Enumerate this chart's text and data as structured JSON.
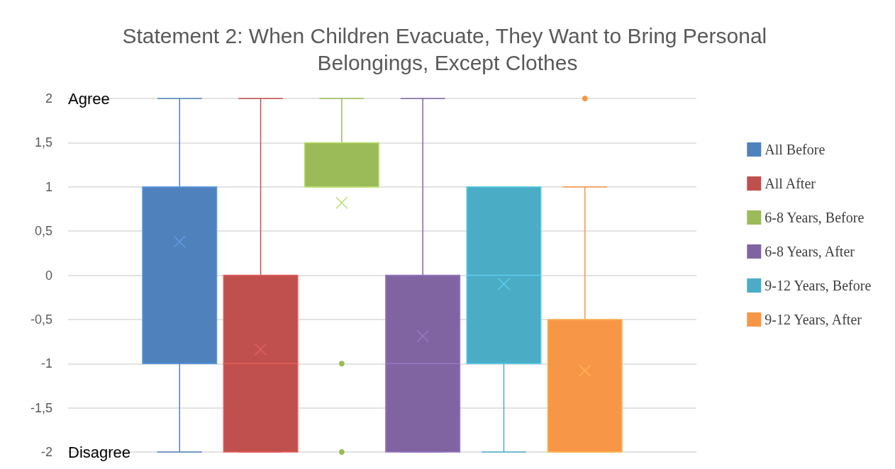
{
  "chart_data": {
    "type": "box",
    "title": "Statement 2: When Children Evacuate, They Want to Bring Personal Belongings, Except Clothes",
    "categories": [
      null
    ],
    "series": [
      {
        "name": "All Before",
        "color": "#4f81bd",
        "boxes": [
          {
            "low": -2,
            "q1": -1,
            "median": 1,
            "q3": 1,
            "high": 2,
            "mean": 0.38
          }
        ]
      },
      {
        "name": "All After",
        "color": "#c0504d",
        "boxes": [
          {
            "low": -2,
            "q1": -2,
            "median": -1,
            "q3": 0,
            "high": 2,
            "mean": -0.84
          }
        ]
      },
      {
        "name": "6-8 Years, Before",
        "color": "#9bbb59",
        "boxes": [
          {
            "low": 1,
            "q1": 1,
            "median": 1,
            "q3": 1.5,
            "high": 2,
            "mean": 0.82,
            "outliers": [
              -1,
              -2
            ]
          }
        ]
      },
      {
        "name": "6-8 Years, After",
        "color": "#8064a2",
        "boxes": [
          {
            "low": -2,
            "q1": -2,
            "median": -1,
            "q3": 0,
            "high": 2,
            "mean": -0.69
          }
        ]
      },
      {
        "name": "9-12 Years, Before",
        "color": "#4bacc6",
        "boxes": [
          {
            "low": -2,
            "q1": -1,
            "median": 0,
            "q3": 1,
            "high": 1,
            "mean": -0.1
          }
        ]
      },
      {
        "name": "9-12 Years, After",
        "color": "#f79646",
        "boxes": [
          {
            "low": -2,
            "q1": -2,
            "median": -2,
            "q3": -0.5,
            "high": 1,
            "mean": -1.08,
            "outliers": [
              2
            ]
          }
        ]
      }
    ],
    "ylim": [
      -2,
      2
    ],
    "yticks": [
      -2,
      {
        "value": -1.5,
        "label": "-1,5"
      },
      -1,
      {
        "value": -0.5,
        "label": "-0,5"
      },
      0,
      {
        "value": 0.5,
        "label": "0,5"
      },
      1,
      {
        "value": 1.5,
        "label": "1,5"
      },
      2
    ],
    "annotations": [
      "Agree",
      "Disagree"
    ],
    "grid": "y",
    "legend": "right",
    "tick_labels": "y"
  }
}
